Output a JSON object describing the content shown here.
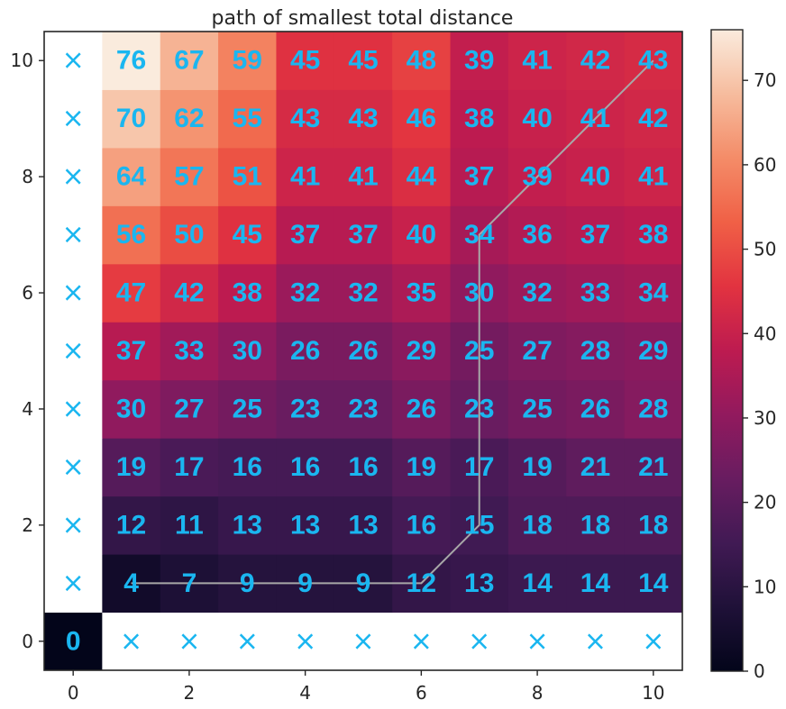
{
  "chart_data": {
    "type": "heatmap",
    "title": "path of smallest total distance",
    "xlabel": "",
    "ylabel": "",
    "x_ticks": [
      0,
      2,
      4,
      6,
      8,
      10
    ],
    "y_ticks": [
      0,
      2,
      4,
      6,
      8,
      10
    ],
    "grid": false,
    "colormap": "rocket",
    "colorbar": {
      "range": [
        0,
        76
      ],
      "ticks": [
        0,
        10,
        20,
        30,
        40,
        50,
        60,
        70
      ],
      "placement": "right"
    },
    "label_color": "#1ab6f0",
    "zero_label_color": "#1ab6f0",
    "masked_color": "#ffffff",
    "masked_marker": "×",
    "rows_from_bottom": [
      [
        0,
        null,
        null,
        null,
        null,
        null,
        null,
        null,
        null,
        null,
        null
      ],
      [
        null,
        4,
        7,
        9,
        9,
        9,
        12,
        13,
        14,
        14,
        14
      ],
      [
        null,
        12,
        11,
        13,
        13,
        13,
        16,
        15,
        18,
        18,
        18
      ],
      [
        null,
        19,
        17,
        16,
        16,
        16,
        19,
        17,
        19,
        21,
        21
      ],
      [
        null,
        30,
        27,
        25,
        23,
        23,
        26,
        23,
        25,
        26,
        28
      ],
      [
        null,
        37,
        33,
        30,
        26,
        26,
        29,
        25,
        27,
        28,
        29
      ],
      [
        null,
        47,
        42,
        38,
        32,
        32,
        35,
        30,
        32,
        33,
        34
      ],
      [
        null,
        56,
        50,
        45,
        37,
        37,
        40,
        34,
        36,
        37,
        38
      ],
      [
        null,
        64,
        57,
        51,
        41,
        41,
        44,
        37,
        39,
        40,
        41
      ],
      [
        null,
        70,
        62,
        55,
        43,
        43,
        46,
        38,
        40,
        41,
        42
      ],
      [
        null,
        76,
        67,
        59,
        45,
        45,
        48,
        39,
        41,
        42,
        43
      ]
    ],
    "path": {
      "color": "#a8a8a8",
      "x": [
        1,
        6,
        7,
        7,
        10
      ],
      "y": [
        1,
        1,
        2,
        7,
        10
      ]
    }
  }
}
